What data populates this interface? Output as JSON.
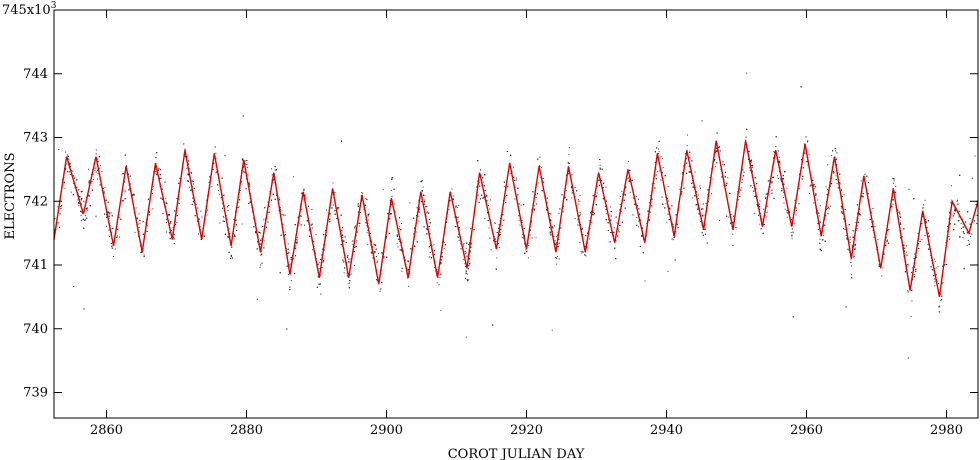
{
  "chart_data": {
    "type": "scatter",
    "title": "",
    "xlabel": "COROT JULIAN DAY",
    "ylabel": "ELECTRONS",
    "y_multiplier_label": {
      "base": "745x10",
      "exp": "3"
    },
    "xlim": [
      2852.5,
      2984.5
    ],
    "ylim": [
      738.6,
      745.0
    ],
    "x_ticks": [
      2860,
      2880,
      2900,
      2920,
      2940,
      2960,
      2980
    ],
    "x_tick_labels": [
      "2860",
      "2880",
      "2900",
      "2920",
      "2940",
      "2960",
      "2980"
    ],
    "y_ticks": [
      739,
      740,
      741,
      742,
      743,
      744
    ],
    "y_tick_labels": [
      "739",
      "740",
      "741",
      "742",
      "743",
      "744"
    ],
    "grid": false,
    "series": [
      {
        "kind": "points",
        "color": "#333333",
        "description_role": "raw photometry",
        "approx_count": 6000
      },
      {
        "kind": "line",
        "color": "#e00000",
        "x": [
          2852.5,
          2854.3,
          2856.7,
          2858.5,
          2861.0,
          2862.8,
          2865.1,
          2867.0,
          2869.4,
          2871.2,
          2873.6,
          2875.4,
          2877.8,
          2879.6,
          2882.0,
          2883.9,
          2886.2,
          2888.1,
          2890.4,
          2892.3,
          2894.6,
          2896.5,
          2898.9,
          2900.7,
          2903.1,
          2904.9,
          2907.3,
          2909.1,
          2911.5,
          2913.3,
          2915.7,
          2917.6,
          2920.0,
          2921.8,
          2924.2,
          2926.0,
          2928.4,
          2930.3,
          2932.6,
          2934.5,
          2936.9,
          2938.7,
          2941.1,
          2942.9,
          2945.3,
          2947.1,
          2949.5,
          2951.3,
          2953.7,
          2955.6,
          2957.9,
          2959.8,
          2962.1,
          2964.0,
          2966.4,
          2968.2,
          2970.6,
          2972.4,
          2974.8,
          2976.6,
          2979.0,
          2980.8,
          2983.2,
          2984.5
        ],
        "y": [
          741.4,
          742.7,
          741.8,
          742.7,
          741.3,
          742.55,
          741.2,
          742.6,
          741.4,
          742.8,
          741.4,
          742.75,
          741.3,
          742.65,
          741.2,
          742.45,
          740.85,
          742.15,
          740.8,
          742.2,
          740.8,
          742.1,
          740.7,
          742.05,
          740.8,
          742.15,
          740.8,
          742.15,
          740.95,
          742.45,
          741.25,
          742.6,
          741.25,
          742.55,
          741.2,
          742.55,
          741.2,
          742.45,
          741.35,
          742.5,
          741.35,
          742.75,
          741.45,
          742.8,
          741.55,
          742.95,
          741.55,
          742.95,
          741.6,
          742.8,
          741.6,
          742.9,
          741.45,
          742.7,
          741.1,
          742.4,
          740.95,
          742.2,
          740.6,
          741.85,
          740.5,
          742.0,
          741.5,
          742.0
        ]
      }
    ]
  }
}
